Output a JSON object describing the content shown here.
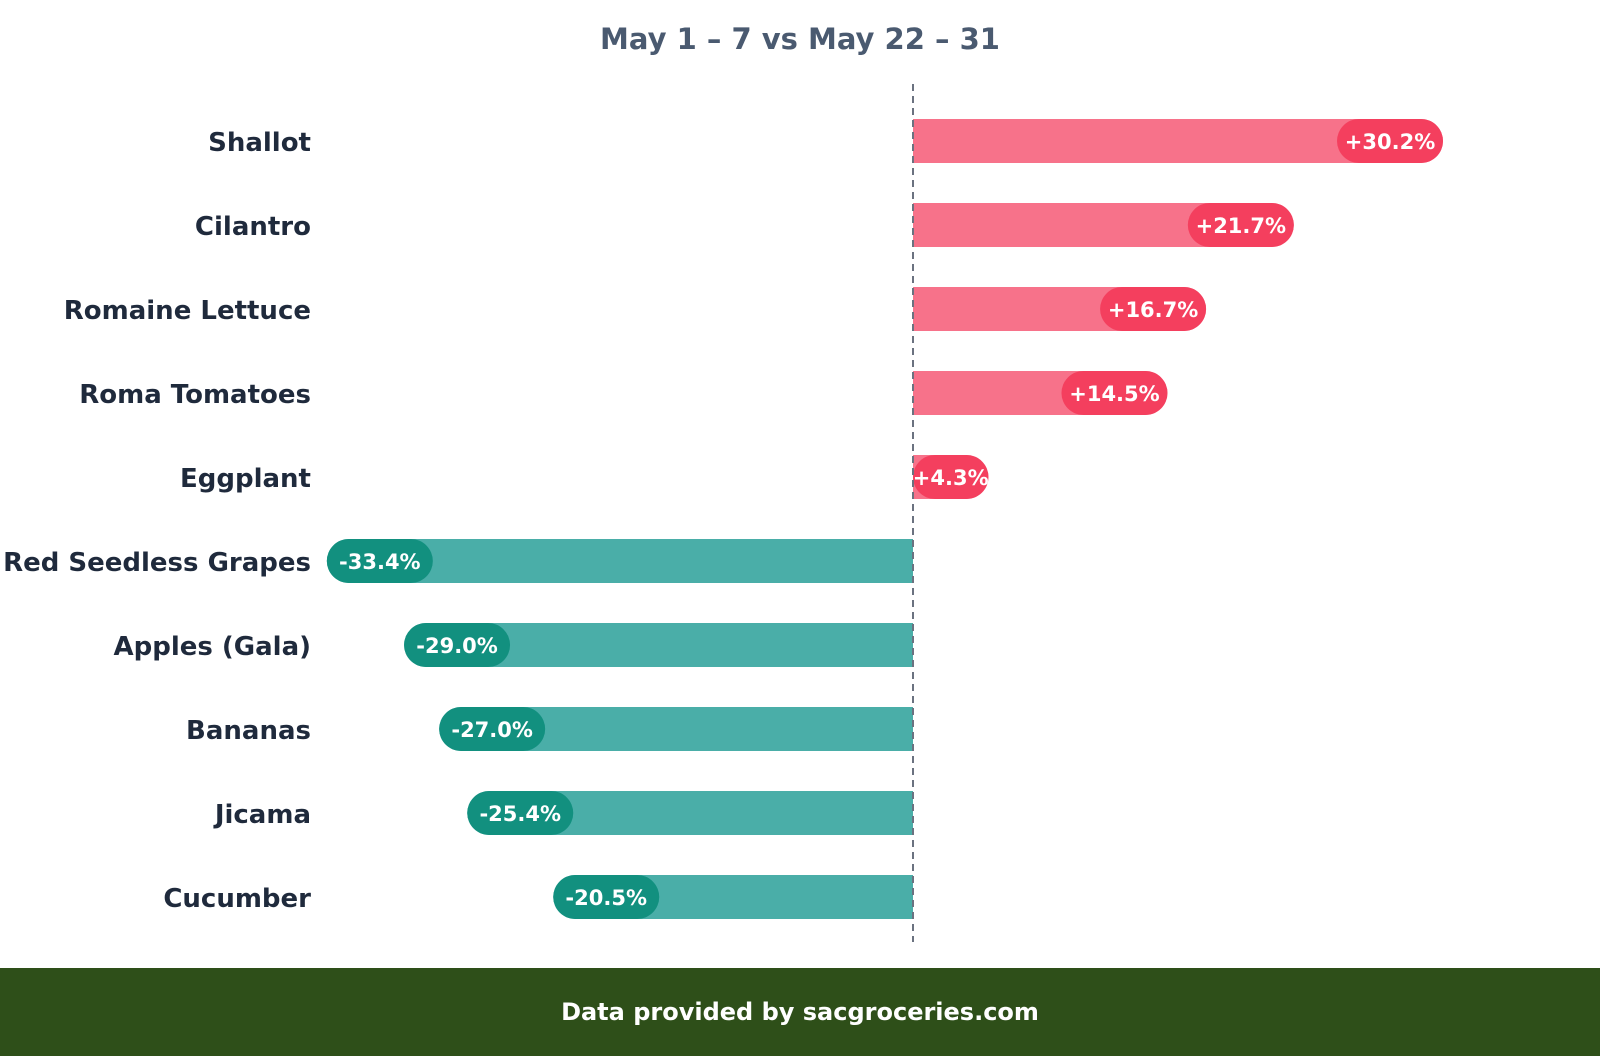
{
  "chart_data": {
    "type": "bar",
    "orientation": "horizontal",
    "title": "May 1 – 7 vs May 22 – 31",
    "categories": [
      "Shallot",
      "Cilantro",
      "Romaine Lettuce",
      "Roma Tomatoes",
      "Eggplant",
      "Red Seedless Grapes",
      "Apples (Gala)",
      "Bananas",
      "Jicama",
      "Cucumber"
    ],
    "values": [
      30.2,
      21.7,
      16.7,
      14.5,
      4.3,
      -33.4,
      -29.0,
      -27.0,
      -25.4,
      -20.5
    ],
    "labels": [
      "+30.2%",
      "+21.7%",
      "+16.7%",
      "+14.5%",
      "+4.3%",
      "-33.4%",
      "-29.0%",
      "-27.0%",
      "-25.4%",
      "-20.5%"
    ],
    "xlim": [
      -36,
      43
    ],
    "zero_line": "dashed",
    "grid": false,
    "colors": {
      "positive_bar": "#f7728a",
      "positive_pill": "#f43f5e",
      "negative_bar": "#4aaea8",
      "negative_pill": "#12907f",
      "label_text": "#1f2a3c",
      "zero_line": "#6b7280"
    }
  },
  "footer": {
    "text": "Data provided by sacgroceries.com",
    "color": "#2e4f19"
  }
}
